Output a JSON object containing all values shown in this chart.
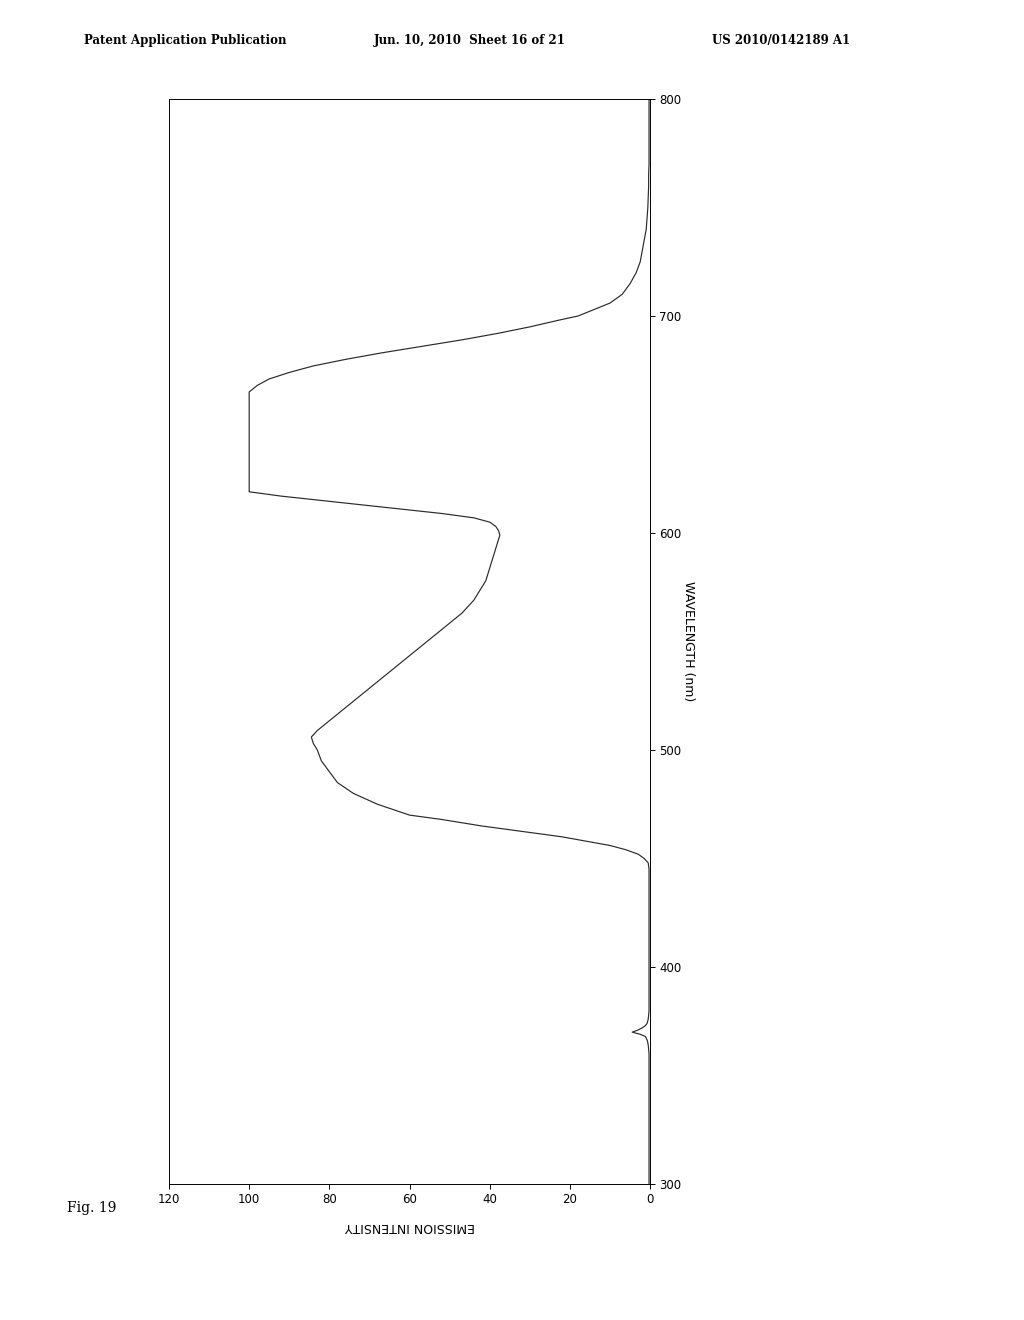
{
  "header_left": "Patent Application Publication",
  "header_center": "Jun. 10, 2010  Sheet 16 of 21",
  "header_right": "US 2010/0142189 A1",
  "fig_label": "Fig. 19",
  "xlabel": "EMISSION INTENSITY",
  "ylabel": "WAVELENGTH (nm)",
  "background_color": "#ffffff",
  "line_color": "#2a2a2a",
  "wavelengths": [
    300,
    303,
    306,
    309,
    312,
    315,
    318,
    321,
    324,
    327,
    330,
    333,
    336,
    339,
    342,
    345,
    348,
    351,
    354,
    357,
    360,
    362,
    364,
    366,
    368,
    369,
    370,
    371,
    372,
    373,
    374,
    376,
    378,
    380,
    382,
    384,
    386,
    388,
    390,
    392,
    394,
    396,
    398,
    400,
    403,
    406,
    409,
    412,
    415,
    418,
    421,
    424,
    427,
    430,
    433,
    436,
    439,
    442,
    445,
    448,
    450,
    452,
    454,
    456,
    458,
    460,
    462,
    465,
    468,
    470,
    475,
    480,
    485,
    490,
    495,
    500,
    503,
    506,
    509,
    512,
    515,
    518,
    521,
    524,
    527,
    530,
    533,
    536,
    539,
    542,
    545,
    548,
    551,
    554,
    557,
    560,
    563,
    566,
    569,
    572,
    575,
    578,
    581,
    584,
    587,
    590,
    593,
    596,
    599,
    601,
    603,
    605,
    607,
    609,
    611,
    613,
    615,
    617,
    619,
    621,
    623,
    625,
    627,
    629,
    631,
    633,
    635,
    637,
    639,
    641,
    643,
    645,
    647,
    649,
    651,
    653,
    655,
    657,
    659,
    661,
    663,
    665,
    668,
    671,
    674,
    677,
    680,
    683,
    686,
    689,
    692,
    695,
    698,
    700,
    703,
    706,
    710,
    715,
    720,
    725,
    730,
    735,
    740,
    745,
    750,
    755,
    760,
    765,
    770,
    775,
    780,
    785,
    790,
    795,
    800
  ],
  "intensities": [
    0.3,
    0.3,
    0.3,
    0.3,
    0.3,
    0.3,
    0.3,
    0.3,
    0.3,
    0.3,
    0.3,
    0.3,
    0.3,
    0.3,
    0.3,
    0.3,
    0.3,
    0.3,
    0.3,
    0.3,
    0.3,
    0.4,
    0.5,
    0.7,
    1.2,
    2.5,
    4.5,
    3.0,
    2.0,
    1.2,
    0.8,
    0.5,
    0.4,
    0.3,
    0.3,
    0.3,
    0.3,
    0.3,
    0.3,
    0.3,
    0.3,
    0.3,
    0.3,
    0.3,
    0.3,
    0.3,
    0.3,
    0.3,
    0.3,
    0.3,
    0.3,
    0.3,
    0.3,
    0.3,
    0.3,
    0.3,
    0.3,
    0.3,
    0.3,
    0.5,
    1.5,
    3.0,
    6.0,
    10.0,
    16.0,
    22.0,
    30.0,
    42.0,
    52.0,
    60.0,
    68.0,
    74.0,
    78.0,
    80.0,
    82.0,
    83.0,
    84.0,
    84.5,
    83.0,
    81.0,
    79.0,
    77.0,
    75.0,
    73.0,
    71.0,
    69.0,
    67.0,
    65.0,
    63.0,
    61.0,
    59.0,
    57.0,
    55.0,
    53.0,
    51.0,
    49.0,
    47.0,
    45.5,
    44.0,
    43.0,
    42.0,
    41.0,
    40.5,
    40.0,
    39.5,
    39.0,
    38.5,
    38.0,
    37.5,
    37.8,
    38.5,
    40.0,
    44.0,
    52.0,
    62.0,
    72.0,
    82.0,
    92.0,
    100.0,
    100.0,
    100.0,
    100.0,
    100.0,
    100.0,
    100.0,
    100.0,
    100.0,
    100.0,
    100.0,
    100.0,
    100.0,
    100.0,
    100.0,
    100.0,
    100.0,
    100.0,
    100.0,
    100.0,
    100.0,
    100.0,
    100.0,
    100.0,
    98.0,
    95.0,
    90.0,
    84.0,
    76.0,
    67.0,
    57.0,
    47.0,
    38.0,
    30.0,
    23.0,
    18.0,
    14.0,
    10.0,
    7.0,
    5.0,
    3.5,
    2.5,
    2.0,
    1.5,
    1.0,
    0.8,
    0.6,
    0.5,
    0.4,
    0.4,
    0.3,
    0.3,
    0.3,
    0.3,
    0.3,
    0.3,
    0.3
  ],
  "clip_value": 100.0,
  "xlim": [
    120,
    0
  ],
  "ylim": [
    300,
    800
  ],
  "xticks": [
    120,
    100,
    80,
    60,
    40,
    20,
    0
  ],
  "yticks": [
    300,
    400,
    500,
    600,
    700,
    800
  ]
}
